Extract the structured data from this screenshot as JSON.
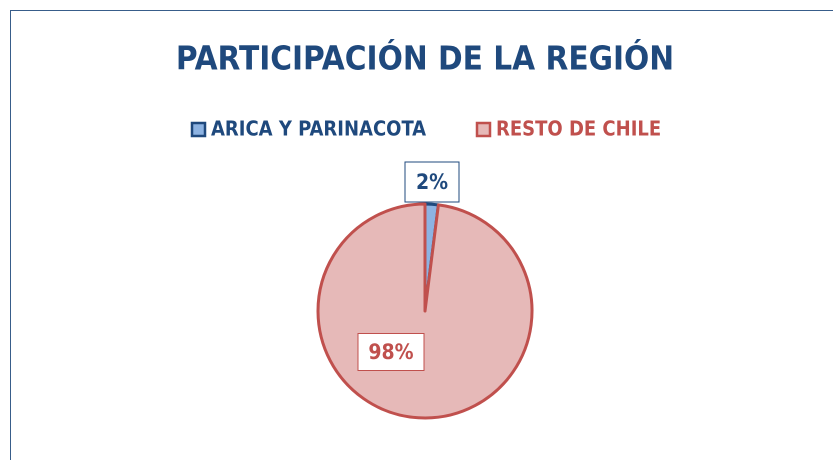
{
  "chart_data": {
    "type": "pie",
    "title": "PARTICIPACIÓN DE LA REGIÓN",
    "categories": [
      "ARICA Y PARINACOTA",
      "RESTO DE CHILE"
    ],
    "values": [
      2,
      98
    ],
    "value_labels": [
      "2%",
      "98%"
    ],
    "colors": [
      "#8db3e2",
      "#e6b9b8"
    ],
    "edge_colors": [
      "#1f497d",
      "#c0504d"
    ]
  }
}
